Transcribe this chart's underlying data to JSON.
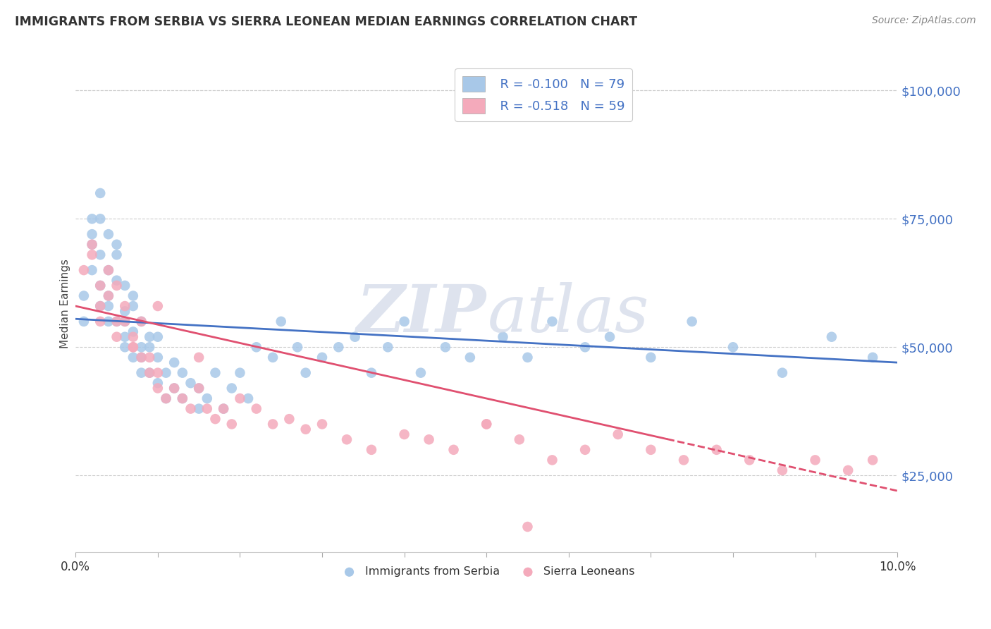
{
  "title": "IMMIGRANTS FROM SERBIA VS SIERRA LEONEAN MEDIAN EARNINGS CORRELATION CHART",
  "source": "Source: ZipAtlas.com",
  "ylabel": "Median Earnings",
  "xlim": [
    0.0,
    0.1
  ],
  "ylim": [
    10000,
    107000
  ],
  "yticks": [
    25000,
    50000,
    75000,
    100000
  ],
  "serbia_color": "#a8c8e8",
  "sierra_leone_color": "#f4aabb",
  "serbia_line_color": "#4472c4",
  "sierra_leone_line_color": "#e05070",
  "legend_r_serbia": "R = -0.100",
  "legend_n_serbia": "N = 79",
  "legend_r_sierra": "R = -0.518",
  "legend_n_sierra": "N = 59",
  "serbia_scatter_x": [
    0.001,
    0.001,
    0.002,
    0.002,
    0.002,
    0.002,
    0.003,
    0.003,
    0.003,
    0.003,
    0.003,
    0.004,
    0.004,
    0.004,
    0.004,
    0.004,
    0.005,
    0.005,
    0.005,
    0.005,
    0.006,
    0.006,
    0.006,
    0.006,
    0.006,
    0.007,
    0.007,
    0.007,
    0.007,
    0.008,
    0.008,
    0.008,
    0.008,
    0.009,
    0.009,
    0.009,
    0.01,
    0.01,
    0.01,
    0.011,
    0.011,
    0.012,
    0.012,
    0.013,
    0.013,
    0.014,
    0.015,
    0.015,
    0.016,
    0.017,
    0.018,
    0.019,
    0.02,
    0.021,
    0.022,
    0.024,
    0.025,
    0.027,
    0.028,
    0.03,
    0.032,
    0.034,
    0.036,
    0.038,
    0.04,
    0.042,
    0.045,
    0.048,
    0.052,
    0.055,
    0.058,
    0.062,
    0.065,
    0.07,
    0.075,
    0.08,
    0.086,
    0.092,
    0.097
  ],
  "serbia_scatter_y": [
    55000,
    60000,
    70000,
    65000,
    72000,
    75000,
    68000,
    62000,
    75000,
    58000,
    80000,
    65000,
    60000,
    55000,
    72000,
    58000,
    63000,
    68000,
    55000,
    70000,
    52000,
    57000,
    62000,
    50000,
    55000,
    60000,
    48000,
    53000,
    58000,
    45000,
    50000,
    55000,
    48000,
    52000,
    45000,
    50000,
    43000,
    48000,
    52000,
    40000,
    45000,
    42000,
    47000,
    40000,
    45000,
    43000,
    38000,
    42000,
    40000,
    45000,
    38000,
    42000,
    45000,
    40000,
    50000,
    48000,
    55000,
    50000,
    45000,
    48000,
    50000,
    52000,
    45000,
    50000,
    55000,
    45000,
    50000,
    48000,
    52000,
    48000,
    55000,
    50000,
    52000,
    48000,
    55000,
    50000,
    45000,
    52000,
    48000
  ],
  "sierra_scatter_x": [
    0.001,
    0.002,
    0.002,
    0.003,
    0.003,
    0.004,
    0.004,
    0.005,
    0.005,
    0.006,
    0.006,
    0.007,
    0.007,
    0.008,
    0.008,
    0.009,
    0.009,
    0.01,
    0.01,
    0.011,
    0.012,
    0.013,
    0.014,
    0.015,
    0.016,
    0.017,
    0.018,
    0.019,
    0.02,
    0.022,
    0.024,
    0.026,
    0.028,
    0.03,
    0.033,
    0.036,
    0.04,
    0.043,
    0.046,
    0.05,
    0.054,
    0.058,
    0.062,
    0.066,
    0.07,
    0.074,
    0.078,
    0.082,
    0.086,
    0.09,
    0.094,
    0.097,
    0.003,
    0.005,
    0.007,
    0.01,
    0.015,
    0.05,
    0.055
  ],
  "sierra_scatter_y": [
    65000,
    70000,
    68000,
    62000,
    58000,
    65000,
    60000,
    55000,
    62000,
    58000,
    55000,
    52000,
    50000,
    48000,
    55000,
    45000,
    48000,
    42000,
    45000,
    40000,
    42000,
    40000,
    38000,
    42000,
    38000,
    36000,
    38000,
    35000,
    40000,
    38000,
    35000,
    36000,
    34000,
    35000,
    32000,
    30000,
    33000,
    32000,
    30000,
    35000,
    32000,
    28000,
    30000,
    33000,
    30000,
    28000,
    30000,
    28000,
    26000,
    28000,
    26000,
    28000,
    55000,
    52000,
    50000,
    58000,
    48000,
    35000,
    15000
  ]
}
